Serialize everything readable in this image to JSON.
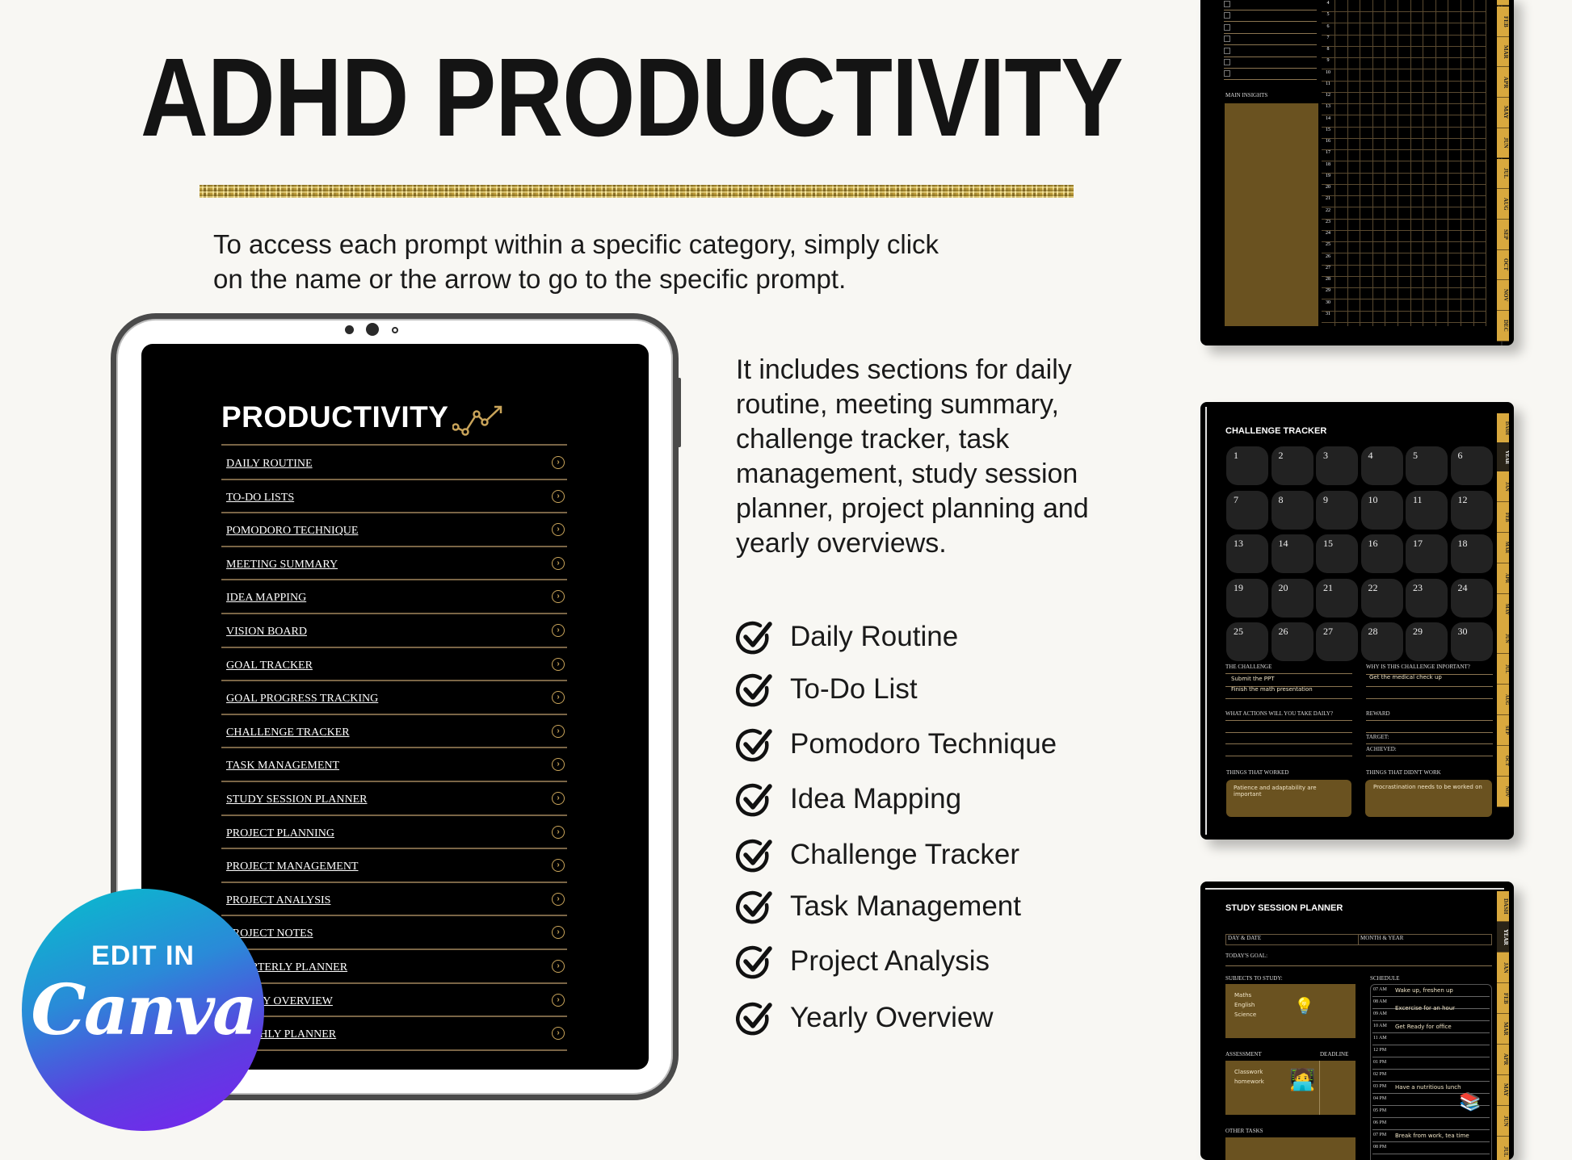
{
  "header": {
    "title": "ADHD PRODUCTIVITY",
    "intro_lines": [
      "To access each prompt within a specific category, simply click",
      "on the name or the arrow to go to the specific prompt."
    ]
  },
  "tablet": {
    "heading": "PRODUCTIVITY",
    "heading_icon": "trend-line-chart-icon",
    "arrow_icon": "circle-chevron-right-icon",
    "items": [
      "DAILY ROUTINE",
      "TO-DO LISTS",
      "POMODORO TECHNIQUE",
      "MEETING SUMMARY",
      "IDEA MAPPING",
      "VISION BOARD",
      "GOAL TRACKER",
      "GOAL PROGRESS TRACKING",
      "CHALLENGE TRACKER",
      "TASK MANAGEMENT",
      "STUDY SESSION PLANNER",
      "PROJECT PLANNING",
      "PROJECT MANAGEMENT",
      "PROJECT ANALYSIS",
      "PROJECT NOTES",
      "QUARTERLY PLANNER",
      "YEARLY OVERVIEW",
      "MONTHLY PLANNER"
    ]
  },
  "badge": {
    "line1": "EDIT IN",
    "line2": "Canva"
  },
  "description": "It includes sections for daily routine, meeting summary, challenge tracker, task management, study session planner, project planning and yearly overviews.",
  "checklist": [
    "Daily Routine",
    "To-Do List",
    "Pomodoro Technique",
    "Idea Mapping",
    "Challenge Tracker",
    "Task Management",
    "Project Analysis",
    "Yearly Overview"
  ],
  "thumb_tracker": {
    "main_insights": "MAIN INSIGHTS",
    "rows": [
      "4",
      "5",
      "6",
      "7",
      "8",
      "9",
      "10",
      "11",
      "12",
      "13",
      "14",
      "15",
      "16",
      "17",
      "18",
      "19",
      "20",
      "21",
      "22",
      "23",
      "24",
      "25",
      "26",
      "27",
      "28",
      "29",
      "30",
      "31"
    ],
    "months": [
      "FEB",
      "MAR",
      "APR",
      "MAY",
      "JUN",
      "JUL",
      "AUG",
      "SEP",
      "OCT",
      "NOV",
      "DEC"
    ]
  },
  "thumb_challenge": {
    "title": "CHALLENGE TRACKER",
    "days": [
      "1",
      "2",
      "3",
      "4",
      "5",
      "6",
      "7",
      "8",
      "9",
      "10",
      "11",
      "12",
      "13",
      "14",
      "15",
      "16",
      "17",
      "18",
      "19",
      "20",
      "21",
      "22",
      "23",
      "24",
      "25",
      "26",
      "27",
      "28",
      "29",
      "30"
    ],
    "tabs": [
      "DASH",
      "YEAR",
      "JAN",
      "FEB",
      "MAR",
      "APR",
      "MAY",
      "JUN",
      "JUL",
      "AUG",
      "SEP",
      "OCT",
      "NOV"
    ],
    "the_challenge": "THE CHALLENGE",
    "challenge_notes": [
      "Submit the PPT",
      "Finish the math presentation"
    ],
    "why_important": "WHY IS THIS CHALLENGE INPORTANT?",
    "why_note": "Get the medical check up",
    "actions": "WHAT ACTIONS WILL YOU TAKE DAILY?",
    "reward": "REWARD",
    "target": "TARGET:",
    "achieved": "ACHIEVED:",
    "worked": "THINGS THAT WORKED",
    "worked_note": "Patience and adaptability are important",
    "didnt": "THINGS THAT DIDN'T WORK",
    "didnt_note": "Procrastination needs to be worked on"
  },
  "thumb_study": {
    "title": "STUDY SESSION PLANNER",
    "day_date": "DAY & DATE",
    "month_year": "MONTH & YEAR",
    "goal": "TODAY'S GOAL:",
    "subjects": "SUBJECTS TO STUDY:",
    "subject_notes": [
      "Maths",
      "English",
      "Science"
    ],
    "schedule": "SCHEDULE",
    "times": [
      "07 AM",
      "08 AM",
      "09 AM",
      "10 AM",
      "11 AM",
      "12 PM",
      "01 PM",
      "02 PM",
      "03 PM",
      "04 PM",
      "05 PM",
      "06 PM",
      "07 PM",
      "08 PM"
    ],
    "schedule_notes": [
      {
        "row": 0,
        "text": "Wake up, freshen up"
      },
      {
        "row": 1,
        "text": "Excercise for an hour"
      },
      {
        "row": 3,
        "text": "Get Ready for office"
      },
      {
        "row": 8,
        "text": "Have a nutritious lunch"
      },
      {
        "row": 12,
        "text": "Break from work, tea time"
      }
    ],
    "assessment": "ASSESSMENT",
    "deadline": "DEADLINE",
    "assessment_notes": [
      "Classwork",
      "homework"
    ],
    "other_tasks": "OTHER TASKS",
    "tabs": [
      "DASH",
      "YEAR",
      "JAN",
      "FEB",
      "MAR",
      "APR",
      "MAY",
      "JUN",
      "JUL"
    ]
  },
  "colors": {
    "gold": "#c9a45a",
    "tab_gold": "#d8a83e",
    "brown_box": "#6a5220",
    "background": "#f8f7f3"
  }
}
